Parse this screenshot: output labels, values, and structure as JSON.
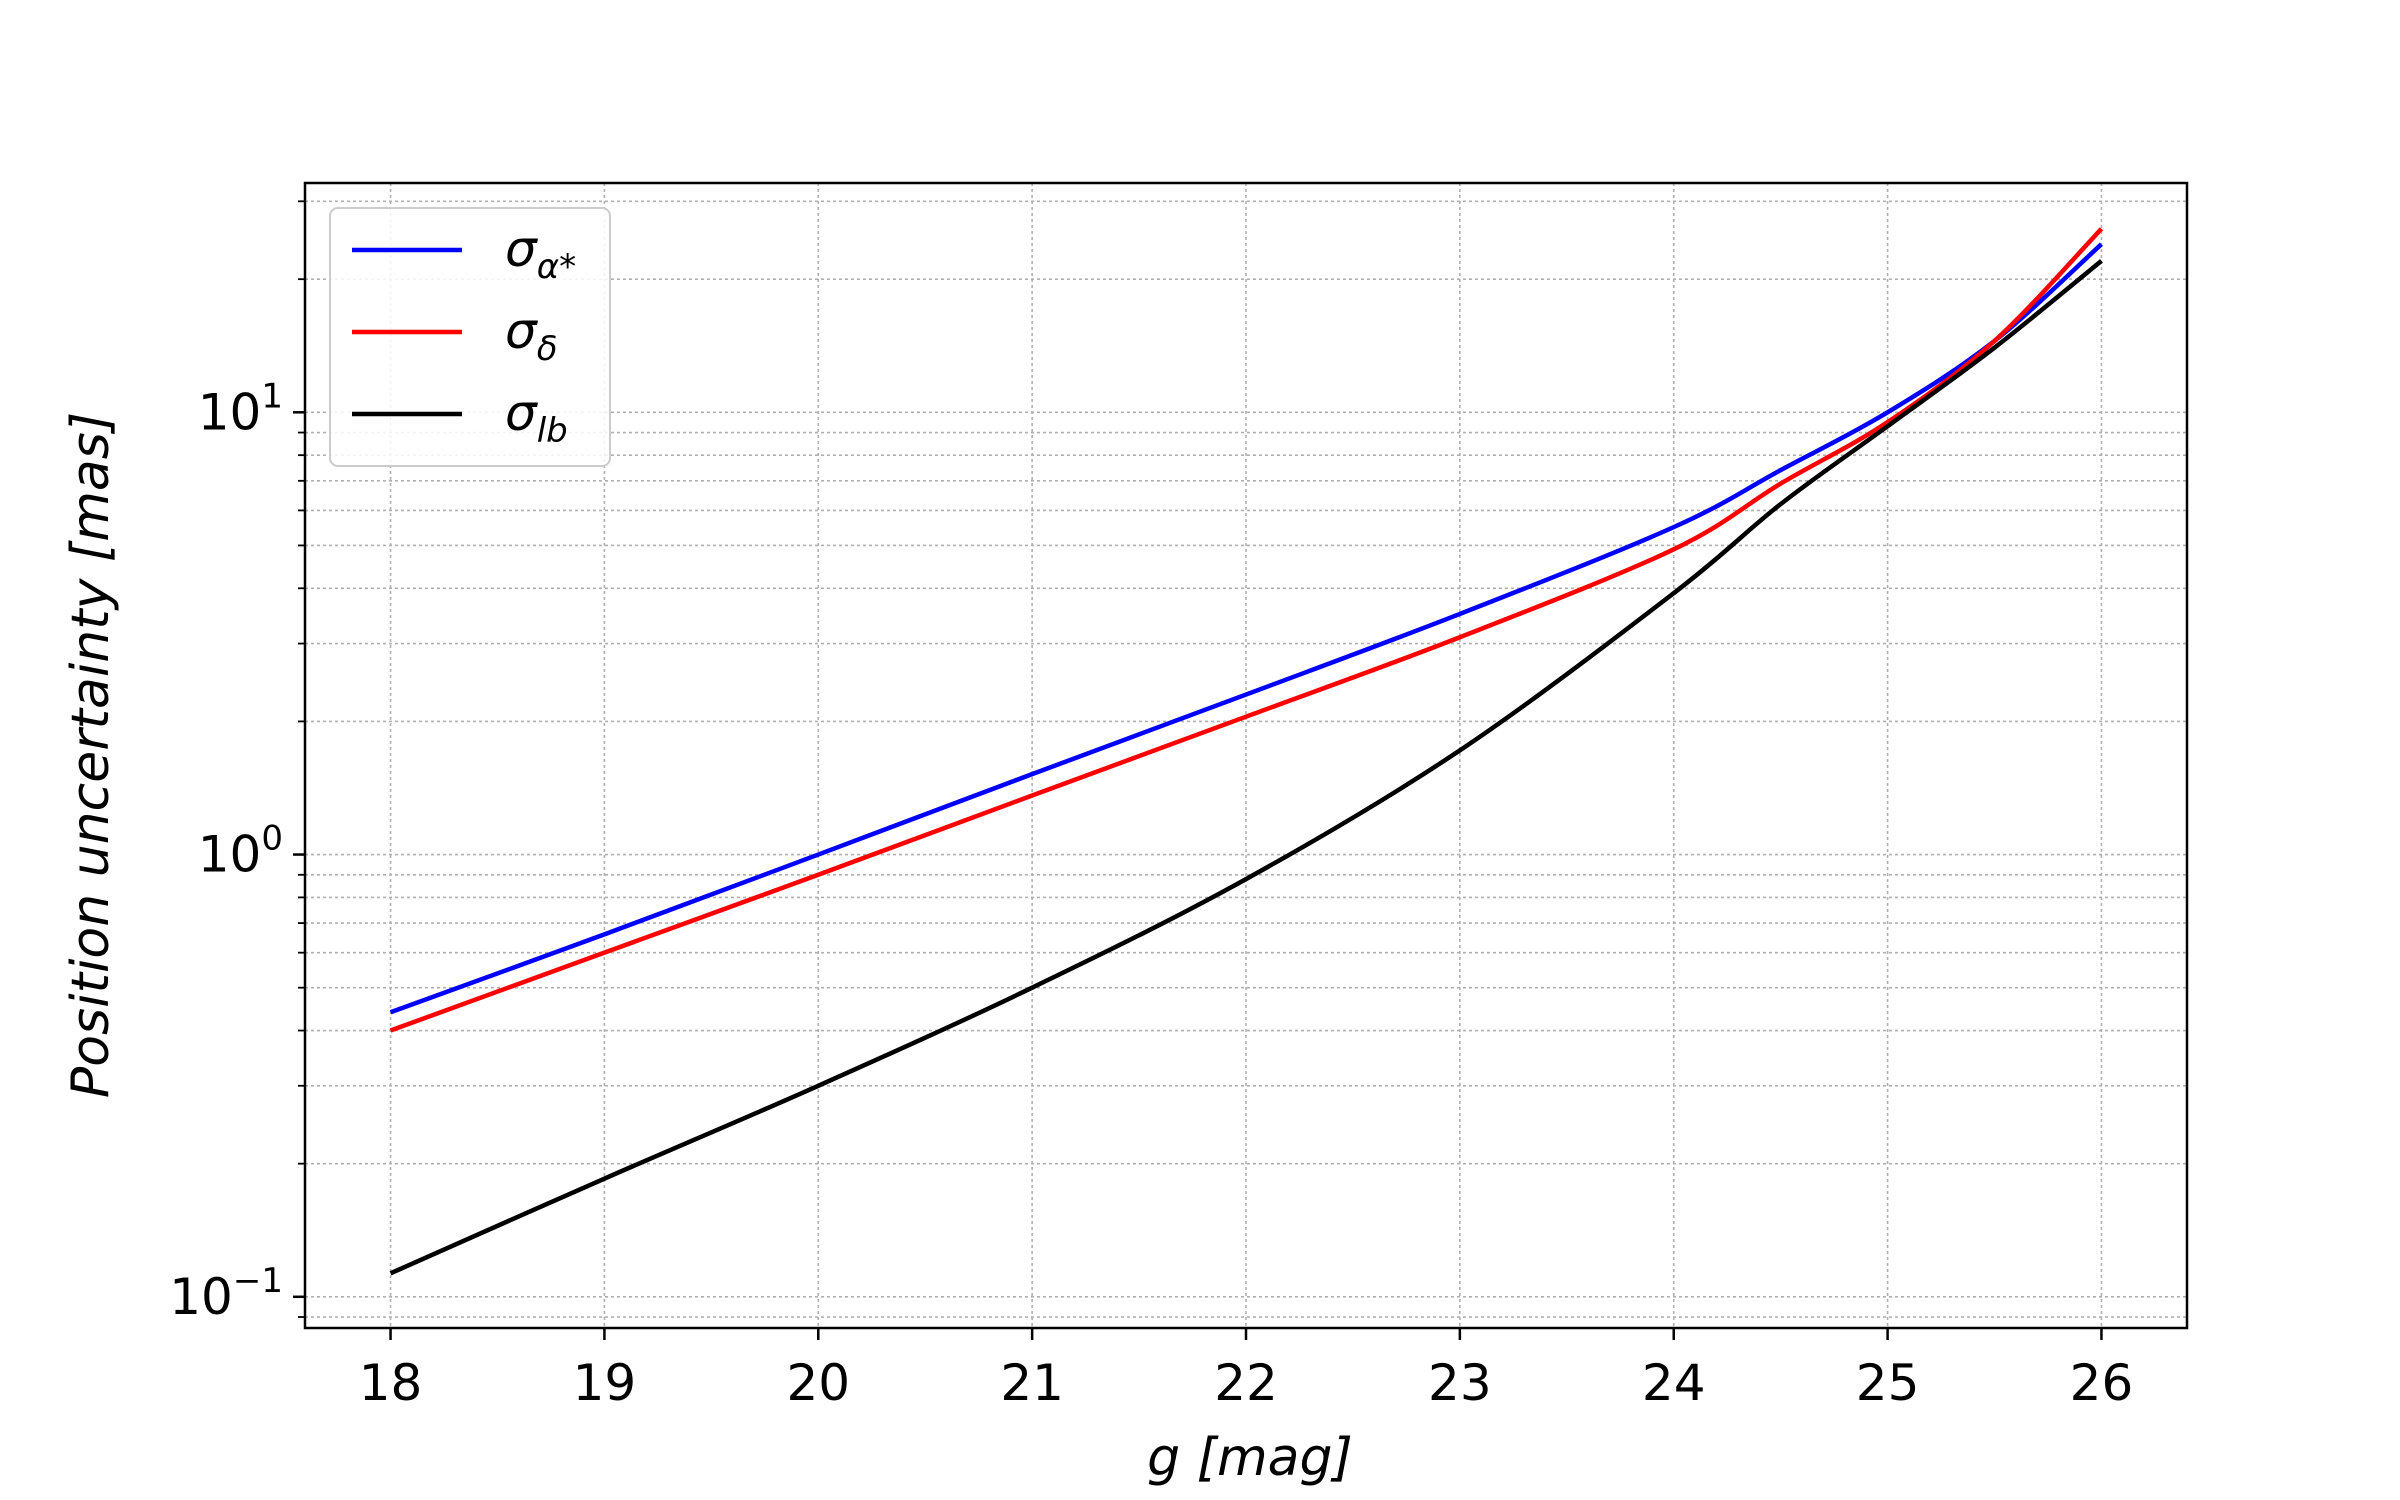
{
  "chart_data": {
    "type": "line",
    "title": "",
    "xlabel": {
      "main": "g",
      "unit": "[mag]"
    },
    "ylabel": {
      "main": "Position uncertainty",
      "unit": "[mas]"
    },
    "x_scale": "linear",
    "y_scale": "log",
    "xlim": [
      17.6,
      26.4
    ],
    "ylim": [
      0.085,
      33
    ],
    "x_ticks": [
      18,
      19,
      20,
      21,
      22,
      23,
      24,
      25,
      26
    ],
    "x_tick_labels": [
      "18",
      "19",
      "20",
      "21",
      "22",
      "23",
      "24",
      "25",
      "26"
    ],
    "y_ticks": [
      {
        "value": 0.1,
        "base": "10",
        "exp": "−1"
      },
      {
        "value": 1,
        "base": "10",
        "exp": "0"
      },
      {
        "value": 10,
        "base": "10",
        "exp": "1"
      }
    ],
    "grid": true,
    "legend_position": "top-left",
    "x": [
      18,
      19,
      20,
      21,
      22,
      23,
      24,
      24.5,
      25,
      25.5,
      26
    ],
    "series": [
      {
        "name": "σ",
        "sub": "α*",
        "color": "#0000ff",
        "values": [
          0.44,
          0.66,
          1.0,
          1.52,
          2.3,
          3.5,
          5.5,
          7.4,
          10.0,
          14.5,
          24.0
        ]
      },
      {
        "name": "σ",
        "sub": "δ",
        "color": "#ff0000",
        "values": [
          0.4,
          0.6,
          0.9,
          1.36,
          2.05,
          3.1,
          4.9,
          6.9,
          9.5,
          14.5,
          26.0
        ]
      },
      {
        "name": "σ",
        "sub": "lb",
        "color": "#000000",
        "values": [
          0.113,
          0.185,
          0.3,
          0.5,
          0.88,
          1.72,
          3.9,
          6.2,
          9.3,
          14.0,
          22.0
        ]
      }
    ]
  }
}
